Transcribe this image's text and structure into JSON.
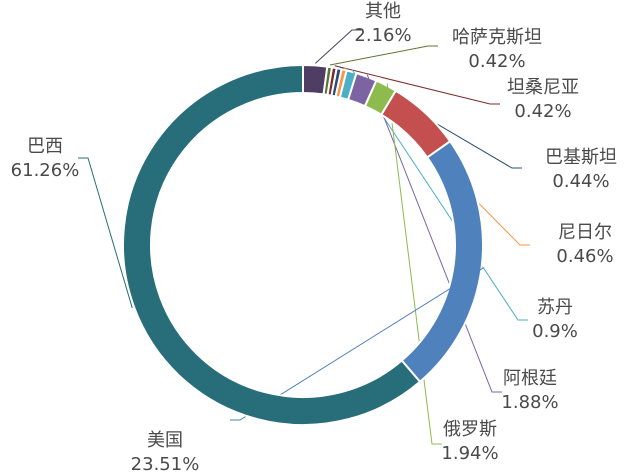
{
  "chart_data": {
    "type": "donut",
    "categories": [
      "其他",
      "哈萨克斯坦",
      "坦桑尼亚",
      "巴基斯坦",
      "尼日尔",
      "苏丹",
      "阿根廷",
      "俄罗斯",
      null,
      "美国",
      "巴西"
    ],
    "values": [
      2.16,
      0.42,
      0.42,
      0.44,
      0.46,
      0.9,
      1.88,
      1.94,
      6.61,
      23.51,
      61.26
    ],
    "value_labels": [
      "2.16%",
      "0.42%",
      "0.42%",
      "0.44%",
      "0.46%",
      "0.9%",
      "1.88%",
      "1.94%",
      null,
      "23.51%",
      "61.26%"
    ],
    "colors": [
      "#4f3d63",
      "#5e7431",
      "#7a2b2b",
      "#2c4c75",
      "#f4994a",
      "#4aafc7",
      "#7c64a3",
      "#8dbb4e",
      "#c44f4f",
      "#4f81bd",
      "#276d7a"
    ]
  }
}
